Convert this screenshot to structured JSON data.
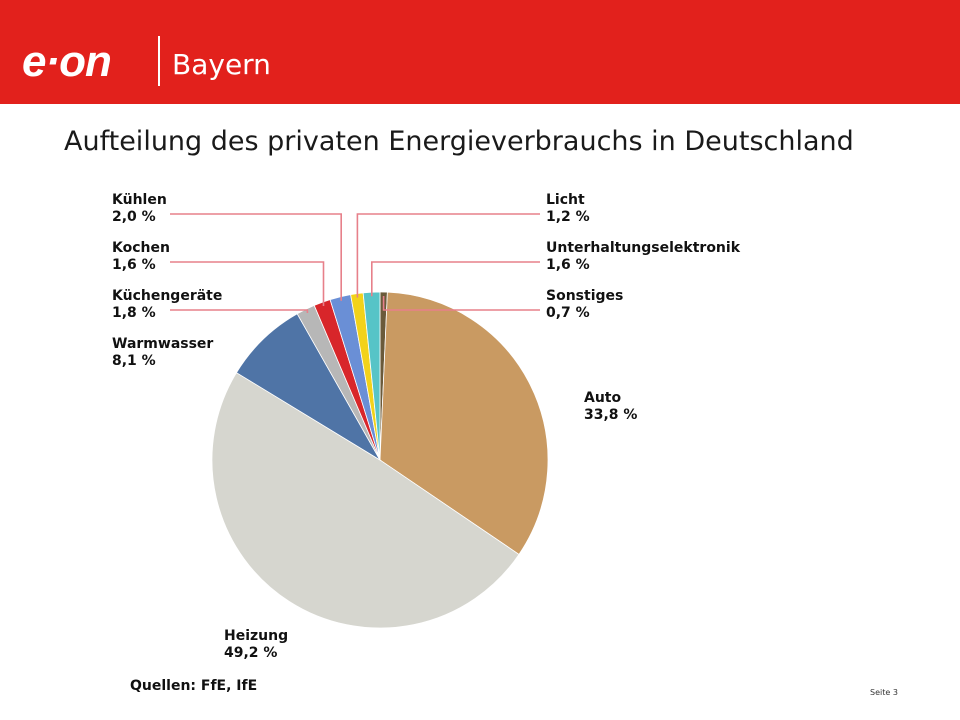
{
  "header": {
    "logo_text": "e·on",
    "region": "Bayern",
    "brand_color": "#e2211c"
  },
  "title": "Aufteilung des privaten Energieverbrauchs in Deutschland",
  "chart_data": {
    "type": "pie",
    "title": "Aufteilung des privaten Energieverbrauchs in Deutschland",
    "slices": [
      {
        "name": "Sonstiges",
        "value": 0.7,
        "value_label": "0,7 %",
        "color": "#6b5a3a"
      },
      {
        "name": "Auto",
        "value": 33.8,
        "value_label": "33,8 %",
        "color": "#c99a62"
      },
      {
        "name": "Heizung",
        "value": 49.2,
        "value_label": "49,2 %",
        "color": "#d6d6cf"
      },
      {
        "name": "Warmwasser",
        "value": 8.1,
        "value_label": "8,1 %",
        "color": "#4f74a6"
      },
      {
        "name": "Küchengeräte",
        "value": 1.8,
        "value_label": "1,8 %",
        "color": "#b7b7b7"
      },
      {
        "name": "Kochen",
        "value": 1.6,
        "value_label": "1,6 %",
        "color": "#d8262a"
      },
      {
        "name": "Kühlen",
        "value": 2.0,
        "value_label": "2,0 %",
        "color": "#6a8fd6"
      },
      {
        "name": "Licht",
        "value": 1.2,
        "value_label": "1,2 %",
        "color": "#f2d21a"
      },
      {
        "name": "Unterhaltungselektronik",
        "value": 1.6,
        "value_label": "1,6 %",
        "color": "#56c4c7"
      }
    ],
    "legend_placement": "around pie with leader lines",
    "leader_line_color": "#e7808a"
  },
  "footer": {
    "source": "Quellen: FfE, IfE",
    "page": "Seite 3"
  }
}
